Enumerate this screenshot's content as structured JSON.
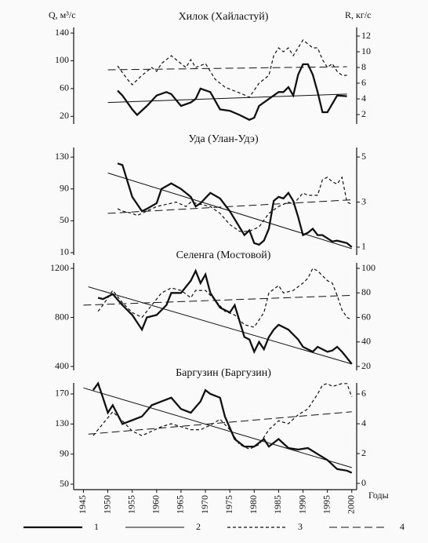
{
  "y_label_left": "Q, м³/с",
  "y_label_right": "R, кг/с",
  "x_axis": {
    "label": "Годы",
    "xlim": [
      1943,
      2001
    ],
    "xticks": [
      1945,
      1950,
      1955,
      1960,
      1965,
      1970,
      1975,
      1980,
      1985,
      1990,
      1995,
      2000
    ]
  },
  "legend": [
    {
      "label": "1",
      "style": "solid-thick"
    },
    {
      "label": "2",
      "style": "solid-thin"
    },
    {
      "label": "3",
      "style": "dash-short"
    },
    {
      "label": "4",
      "style": "dash-long"
    }
  ],
  "chart_data": [
    {
      "type": "line",
      "title": "Хилок (Хайластуй)",
      "color": "#111111",
      "ylim": [
        9,
        148
      ],
      "yticks": [
        20,
        60,
        100,
        140
      ],
      "y2lim": [
        0.8,
        13.1
      ],
      "y2ticks": [
        2,
        4,
        6,
        8,
        10,
        12
      ],
      "series": [
        {
          "style": "solid-thick",
          "x": [
            1952,
            1953,
            1955,
            1956,
            1958,
            1960,
            1962,
            1963,
            1965,
            1967,
            1968,
            1969,
            1971,
            1973,
            1975,
            1977,
            1979,
            1980,
            1981,
            1983,
            1985,
            1986,
            1987,
            1988,
            1989,
            1990,
            1991,
            1992,
            1993,
            1994,
            1995,
            1997,
            1999
          ],
          "values": [
            57,
            50,
            30,
            22,
            35,
            50,
            55,
            52,
            35,
            40,
            45,
            60,
            55,
            30,
            28,
            22,
            15,
            18,
            35,
            45,
            55,
            55,
            62,
            50,
            80,
            95,
            95,
            80,
            55,
            26,
            26,
            50,
            49
          ]
        },
        {
          "style": "solid-thin",
          "x": [
            1950,
            1999
          ],
          "values": [
            40,
            52
          ]
        },
        {
          "style": "dash-short",
          "axis": "y2",
          "x": [
            1952,
            1954,
            1955,
            1957,
            1959,
            1960,
            1961,
            1963,
            1964,
            1966,
            1967,
            1968,
            1970,
            1972,
            1974,
            1976,
            1978,
            1979,
            1981,
            1983,
            1984,
            1985,
            1986,
            1987,
            1988,
            1989,
            1990,
            1991,
            1992,
            1993,
            1994,
            1995,
            1996,
            1997,
            1998,
            1999
          ],
          "values": [
            8.2,
            6.5,
            5.8,
            7,
            8,
            7.5,
            8.5,
            9.5,
            9,
            8,
            9,
            8,
            8.5,
            6.5,
            5.5,
            5,
            4.5,
            4.2,
            6,
            7,
            9.5,
            10.5,
            10,
            10.5,
            9.5,
            10.5,
            11.5,
            11,
            10.5,
            10.5,
            9,
            8,
            8.5,
            7.5,
            7,
            7
          ]
        },
        {
          "style": "dash-long",
          "axis": "y2",
          "x": [
            1950,
            1999
          ],
          "values": [
            7.7,
            8.1
          ]
        }
      ]
    },
    {
      "type": "line",
      "title": "Уда (Улан-Удэ)",
      "color": "#111111",
      "ylim": [
        7,
        142
      ],
      "yticks": [
        10,
        50,
        90,
        130
      ],
      "y2lim": [
        0.65,
        5.42
      ],
      "y2ticks": [
        1,
        3,
        5
      ],
      "series": [
        {
          "style": "solid-thick",
          "x": [
            1952,
            1953,
            1955,
            1957,
            1958,
            1960,
            1961,
            1963,
            1965,
            1967,
            1968,
            1969,
            1971,
            1973,
            1975,
            1977,
            1978,
            1979,
            1980,
            1981,
            1982,
            1983,
            1984,
            1985,
            1986,
            1987,
            1988,
            1989,
            1990,
            1991,
            1992,
            1993,
            1994,
            1995,
            1996,
            1997,
            1999,
            2000
          ],
          "values": [
            122,
            120,
            80,
            62,
            65,
            72,
            90,
            97,
            90,
            80,
            68,
            72,
            85,
            78,
            62,
            42,
            32,
            38,
            22,
            20,
            25,
            40,
            75,
            80,
            78,
            85,
            75,
            55,
            32,
            35,
            40,
            32,
            32,
            28,
            24,
            25,
            22,
            17
          ]
        },
        {
          "style": "solid-thin",
          "x": [
            1950,
            2000
          ],
          "values": [
            110,
            15
          ]
        },
        {
          "style": "dash-short",
          "axis": "y2",
          "x": [
            1952,
            1953,
            1955,
            1956,
            1958,
            1960,
            1962,
            1964,
            1966,
            1967,
            1969,
            1971,
            1973,
            1975,
            1977,
            1979,
            1981,
            1983,
            1985,
            1987,
            1988,
            1990,
            1991,
            1993,
            1994,
            1995,
            1996,
            1997,
            1998,
            1999,
            2000
          ],
          "values": [
            2.7,
            2.6,
            2.5,
            2.4,
            2.6,
            2.8,
            2.9,
            3.0,
            2.8,
            3.0,
            2.9,
            2.8,
            2.5,
            2.0,
            1.7,
            1.7,
            1.9,
            2.5,
            2.8,
            3.0,
            2.9,
            3.4,
            3.3,
            3.3,
            4.0,
            4.1,
            3.9,
            3.8,
            4.1,
            3.0,
            2.9
          ]
        },
        {
          "style": "dash-long",
          "axis": "y2",
          "x": [
            1950,
            2000
          ],
          "values": [
            2.5,
            3.1
          ]
        }
      ]
    },
    {
      "type": "line",
      "title": "Селенга (Мостовой)",
      "color": "#111111",
      "ylim": [
        368,
        1245
      ],
      "yticks": [
        400,
        800,
        1200
      ],
      "y2lim": [
        16.8,
        104.5
      ],
      "y2ticks": [
        20,
        40,
        60,
        80,
        100
      ],
      "series": [
        {
          "style": "solid-thick",
          "x": [
            1948,
            1949,
            1950,
            1951,
            1953,
            1955,
            1957,
            1958,
            1960,
            1962,
            1963,
            1965,
            1966,
            1967,
            1968,
            1969,
            1970,
            1971,
            1973,
            1975,
            1976,
            1978,
            1979,
            1980,
            1981,
            1982,
            1983,
            1984,
            1985,
            1987,
            1989,
            1990,
            1992,
            1993,
            1995,
            1996,
            1997,
            1998,
            2000
          ],
          "values": [
            960,
            950,
            970,
            990,
            900,
            820,
            700,
            800,
            820,
            900,
            1000,
            1000,
            1050,
            1100,
            1180,
            1080,
            1150,
            1000,
            880,
            840,
            900,
            640,
            620,
            520,
            600,
            540,
            640,
            700,
            740,
            700,
            620,
            560,
            520,
            560,
            520,
            530,
            560,
            520,
            420
          ]
        },
        {
          "style": "solid-thin",
          "x": [
            1946,
            2000
          ],
          "values": [
            1050,
            420
          ]
        },
        {
          "style": "dash-short",
          "axis": "y2",
          "x": [
            1948,
            1949,
            1951,
            1953,
            1955,
            1957,
            1959,
            1961,
            1963,
            1965,
            1967,
            1968,
            1970,
            1972,
            1974,
            1976,
            1978,
            1980,
            1982,
            1983,
            1985,
            1986,
            1988,
            1990,
            1991,
            1992,
            1993,
            1995,
            1996,
            1997,
            1998,
            1999,
            2000
          ],
          "values": [
            65,
            70,
            82,
            72,
            64,
            60,
            70,
            80,
            84,
            82,
            76,
            82,
            82,
            74,
            65,
            62,
            54,
            52,
            64,
            80,
            86,
            80,
            82,
            88,
            92,
            100,
            98,
            90,
            88,
            78,
            66,
            60,
            58
          ]
        },
        {
          "style": "dash-long",
          "axis": "y2",
          "x": [
            1945,
            2000
          ],
          "values": [
            70,
            78
          ]
        }
      ]
    },
    {
      "type": "line",
      "title": "Баргузин (Баргузин)",
      "color": "#111111",
      "ylim": [
        42.7,
        184.6
      ],
      "yticks": [
        50,
        90,
        130,
        170
      ],
      "y2lim": [
        -0.42,
        6.74
      ],
      "y2ticks": [
        0,
        2,
        4,
        6
      ],
      "series": [
        {
          "style": "solid-thick",
          "x": [
            1947,
            1948,
            1949,
            1950,
            1951,
            1953,
            1955,
            1957,
            1959,
            1961,
            1963,
            1965,
            1967,
            1969,
            1970,
            1971,
            1973,
            1974,
            1976,
            1978,
            1980,
            1982,
            1983,
            1985,
            1987,
            1989,
            1991,
            1993,
            1995,
            1997,
            1999,
            2000
          ],
          "values": [
            175,
            184,
            165,
            145,
            155,
            130,
            135,
            140,
            155,
            160,
            165,
            150,
            145,
            160,
            175,
            170,
            165,
            140,
            110,
            100,
            100,
            110,
            100,
            110,
            98,
            96,
            98,
            90,
            82,
            70,
            68,
            65
          ]
        },
        {
          "style": "solid-thin",
          "x": [
            1945,
            2000
          ],
          "values": [
            178,
            72
          ]
        },
        {
          "style": "dash-short",
          "axis": "y2",
          "x": [
            1947,
            1949,
            1951,
            1953,
            1955,
            1957,
            1959,
            1961,
            1963,
            1965,
            1967,
            1969,
            1971,
            1973,
            1975,
            1977,
            1979,
            1981,
            1983,
            1985,
            1987,
            1989,
            1991,
            1993,
            1994,
            1995,
            1996,
            1998,
            1999,
            2000
          ],
          "values": [
            3.2,
            4.0,
            4.8,
            4.2,
            3.5,
            3.2,
            3.5,
            3.8,
            4.0,
            3.8,
            3.6,
            3.6,
            3.9,
            4.3,
            3.6,
            2.6,
            2.3,
            2.6,
            3.6,
            4.2,
            4.0,
            4.6,
            5.0,
            6.0,
            6.6,
            6.7,
            6.5,
            6.7,
            6.7,
            5.8
          ]
        },
        {
          "style": "dash-long",
          "axis": "y2",
          "x": [
            1946,
            2000
          ],
          "values": [
            3.3,
            4.8
          ]
        }
      ]
    }
  ]
}
